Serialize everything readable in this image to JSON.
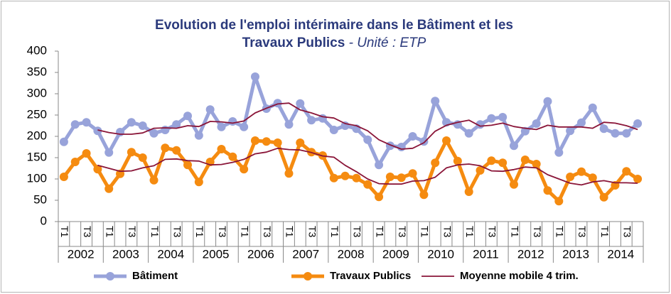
{
  "chart_data": {
    "type": "line",
    "title": [
      "Evolution de l'emploi intérimaire dans le Bâtiment et les",
      "Travaux Publics"
    ],
    "subtitle": " - Unité : ETP",
    "categories": [
      "T1",
      null,
      "T3",
      null,
      "T1",
      null,
      "T3",
      null,
      "T1",
      null,
      "T3",
      null,
      "T1",
      null,
      "T3",
      null,
      "T1",
      null,
      "T3",
      null,
      "T1",
      null,
      "T3",
      null,
      "T1",
      null,
      "T3",
      null,
      "T1",
      null,
      "T3",
      null,
      "T1",
      null,
      "T3",
      null,
      "T1",
      null,
      "T3",
      null,
      "T1",
      null,
      "T3",
      null,
      "T1",
      null,
      "T3",
      null,
      "T1",
      null,
      "T3",
      null
    ],
    "years": [
      2002,
      2003,
      2004,
      2005,
      2006,
      2007,
      2008,
      2009,
      2010,
      2011,
      2012,
      2013,
      2014
    ],
    "series": [
      {
        "name": "Bâtiment",
        "color": "#98a3da",
        "values": [
          187,
          228,
          233,
          213,
          162,
          210,
          233,
          225,
          207,
          215,
          228,
          248,
          202,
          263,
          222,
          235,
          222,
          340,
          265,
          278,
          228,
          277,
          238,
          242,
          215,
          225,
          218,
          192,
          133,
          178,
          175,
          200,
          188,
          283,
          233,
          228,
          207,
          228,
          242,
          245,
          178,
          212,
          230,
          282,
          162,
          213,
          232,
          267,
          218,
          207,
          207,
          230
        ]
      },
      {
        "name": "Travaux Publics",
        "color": "#f58b10",
        "values": [
          105,
          140,
          160,
          123,
          77,
          112,
          163,
          150,
          97,
          173,
          167,
          133,
          93,
          140,
          170,
          152,
          123,
          190,
          188,
          185,
          113,
          185,
          163,
          155,
          102,
          107,
          102,
          87,
          58,
          105,
          103,
          113,
          63,
          138,
          190,
          142,
          70,
          120,
          143,
          138,
          87,
          145,
          135,
          73,
          48,
          105,
          117,
          103,
          57,
          85,
          118,
          100
        ]
      }
    ],
    "moving_average": {
      "name": "Moyenne mobile 4 trim.",
      "color": "#8a1538",
      "values": [
        [
          null,
          null,
          null,
          215,
          209,
          205,
          205,
          208,
          219,
          220,
          219,
          225,
          223,
          235,
          234,
          231,
          236,
          255,
          266,
          276,
          278,
          262,
          255,
          246,
          243,
          230,
          225,
          213,
          192,
          180,
          170,
          172,
          185,
          212,
          226,
          233,
          238,
          224,
          226,
          231,
          223,
          219,
          216,
          226,
          222,
          222,
          222,
          219,
          233,
          231,
          225,
          216
        ],
        [
          null,
          null,
          null,
          132,
          125,
          118,
          119,
          126,
          131,
          146,
          147,
          143,
          142,
          133,
          134,
          139,
          146,
          159,
          163,
          172,
          169,
          168,
          162,
          154,
          151,
          132,
          117,
          100,
          89,
          88,
          88,
          95,
          96,
          104,
          126,
          133,
          135,
          131,
          119,
          118,
          122,
          128,
          126,
          110,
          100,
          90,
          86,
          93,
          96,
          91,
          91,
          90
        ]
      ]
    },
    "ylim": [
      0,
      400
    ],
    "yticks": [
      0,
      50,
      100,
      150,
      200,
      250,
      300,
      350,
      400
    ],
    "grid": false
  }
}
